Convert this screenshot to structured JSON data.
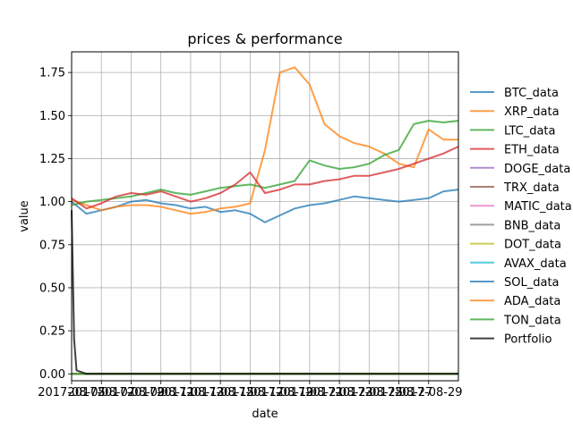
{
  "chart_data": {
    "type": "line",
    "title": "prices & performance",
    "xlabel": "date",
    "ylabel": "value",
    "x_ticks": [
      "2017-08-05",
      "2017-08-07",
      "2017-08-09",
      "2017-08-11",
      "2017-08-13",
      "2017-08-15",
      "2017-08-17",
      "2017-08-19",
      "2017-08-21",
      "2017-08-23",
      "2017-08-25",
      "2017-08-27",
      "2017-08-29"
    ],
    "x_tick_labels": [
      "2017-08-05",
      "2017-08-07",
      "2017-08-09",
      "2017-08-11",
      "2017-08-13",
      "2017-08-15",
      "2017-08-17",
      "2017-08-19",
      "2017-08-21",
      "2017-08-23",
      "2017-08-25",
      "2017-08-27",
      "2017-08-29"
    ],
    "x_range": [
      "2017-08-05",
      "2017-08-31"
    ],
    "y_ticks": [
      0.0,
      0.25,
      0.5,
      0.75,
      1.0,
      1.25,
      1.5,
      1.75
    ],
    "y_tick_labels": [
      "0.00",
      "0.25",
      "0.50",
      "0.75",
      "1.00",
      "1.25",
      "1.50",
      "1.75"
    ],
    "ylim": [
      -0.04,
      1.87
    ],
    "grid": true,
    "legend_position": "right",
    "series": [
      {
        "name": "BTC_data",
        "color": "#1f77b4",
        "alpha": 0.75,
        "x": [
          "2017-08-05",
          "2017-08-06",
          "2017-08-07",
          "2017-08-08",
          "2017-08-09",
          "2017-08-10",
          "2017-08-11",
          "2017-08-12",
          "2017-08-13",
          "2017-08-14",
          "2017-08-15",
          "2017-08-16",
          "2017-08-17",
          "2017-08-18",
          "2017-08-19",
          "2017-08-20",
          "2017-08-21",
          "2017-08-22",
          "2017-08-23",
          "2017-08-24",
          "2017-08-25",
          "2017-08-26",
          "2017-08-27",
          "2017-08-28",
          "2017-08-29",
          "2017-08-30",
          "2017-08-31"
        ],
        "y": [
          1.0,
          0.93,
          0.95,
          0.97,
          1.0,
          1.01,
          0.99,
          0.98,
          0.96,
          0.97,
          0.94,
          0.95,
          0.93,
          0.88,
          0.92,
          0.96,
          0.98,
          0.99,
          1.01,
          1.03,
          1.02,
          1.01,
          1.0,
          1.01,
          1.02,
          1.06,
          1.07
        ]
      },
      {
        "name": "XRP_data",
        "color": "#ff7f0e",
        "alpha": 0.75,
        "x": [
          "2017-08-05",
          "2017-08-06",
          "2017-08-07",
          "2017-08-08",
          "2017-08-09",
          "2017-08-10",
          "2017-08-11",
          "2017-08-12",
          "2017-08-13",
          "2017-08-14",
          "2017-08-15",
          "2017-08-16",
          "2017-08-17",
          "2017-08-18",
          "2017-08-19",
          "2017-08-20",
          "2017-08-21",
          "2017-08-22",
          "2017-08-23",
          "2017-08-24",
          "2017-08-25",
          "2017-08-26",
          "2017-08-27",
          "2017-08-28",
          "2017-08-29",
          "2017-08-30",
          "2017-08-31"
        ],
        "y": [
          1.01,
          0.98,
          0.95,
          0.97,
          0.98,
          0.98,
          0.97,
          0.95,
          0.93,
          0.94,
          0.96,
          0.97,
          0.99,
          1.3,
          1.75,
          1.78,
          1.68,
          1.45,
          1.38,
          1.34,
          1.32,
          1.28,
          1.22,
          1.2,
          1.42,
          1.36,
          1.36
        ]
      },
      {
        "name": "LTC_data",
        "color": "#2ca02c",
        "alpha": 0.75,
        "x": [
          "2017-08-05",
          "2017-08-06",
          "2017-08-07",
          "2017-08-08",
          "2017-08-09",
          "2017-08-10",
          "2017-08-11",
          "2017-08-12",
          "2017-08-13",
          "2017-08-14",
          "2017-08-15",
          "2017-08-16",
          "2017-08-17",
          "2017-08-18",
          "2017-08-19",
          "2017-08-20",
          "2017-08-21",
          "2017-08-22",
          "2017-08-23",
          "2017-08-24",
          "2017-08-25",
          "2017-08-26",
          "2017-08-27",
          "2017-08-28",
          "2017-08-29",
          "2017-08-30",
          "2017-08-31"
        ],
        "y": [
          0.98,
          1.0,
          1.01,
          1.02,
          1.03,
          1.05,
          1.07,
          1.05,
          1.04,
          1.06,
          1.08,
          1.09,
          1.1,
          1.08,
          1.1,
          1.12,
          1.24,
          1.21,
          1.19,
          1.2,
          1.22,
          1.27,
          1.3,
          1.45,
          1.47,
          1.46,
          1.47
        ]
      },
      {
        "name": "ETH_data",
        "color": "#d62728",
        "alpha": 0.75,
        "x": [
          "2017-08-05",
          "2017-08-06",
          "2017-08-07",
          "2017-08-08",
          "2017-08-09",
          "2017-08-10",
          "2017-08-11",
          "2017-08-12",
          "2017-08-13",
          "2017-08-14",
          "2017-08-15",
          "2017-08-16",
          "2017-08-17",
          "2017-08-18",
          "2017-08-19",
          "2017-08-20",
          "2017-08-21",
          "2017-08-22",
          "2017-08-23",
          "2017-08-24",
          "2017-08-25",
          "2017-08-26",
          "2017-08-27",
          "2017-08-28",
          "2017-08-29",
          "2017-08-30",
          "2017-08-31"
        ],
        "y": [
          1.02,
          0.96,
          0.99,
          1.03,
          1.05,
          1.04,
          1.06,
          1.03,
          1.0,
          1.02,
          1.05,
          1.1,
          1.17,
          1.05,
          1.07,
          1.1,
          1.1,
          1.12,
          1.13,
          1.15,
          1.15,
          1.17,
          1.19,
          1.22,
          1.25,
          1.28,
          1.32
        ]
      },
      {
        "name": "DOGE_data",
        "color": "#9467bd",
        "alpha": 0.75,
        "x": [
          "2017-08-05",
          "2017-08-31"
        ],
        "y": [
          0.0,
          0.0
        ]
      },
      {
        "name": "TRX_data",
        "color": "#8c564b",
        "alpha": 0.75,
        "x": [
          "2017-08-05",
          "2017-08-31"
        ],
        "y": [
          0.0,
          0.0
        ]
      },
      {
        "name": "MATIC_data",
        "color": "#e377c2",
        "alpha": 0.75,
        "x": [
          "2017-08-05",
          "2017-08-31"
        ],
        "y": [
          0.0,
          0.0
        ]
      },
      {
        "name": "BNB_data",
        "color": "#7f7f7f",
        "alpha": 0.75,
        "x": [
          "2017-08-05",
          "2017-08-31"
        ],
        "y": [
          0.0,
          0.0
        ]
      },
      {
        "name": "DOT_data",
        "color": "#bcbd22",
        "alpha": 0.75,
        "x": [
          "2017-08-05",
          "2017-08-31"
        ],
        "y": [
          0.0,
          0.0
        ]
      },
      {
        "name": "AVAX_data",
        "color": "#17becf",
        "alpha": 0.75,
        "x": [
          "2017-08-05",
          "2017-08-31"
        ],
        "y": [
          0.0,
          0.0
        ]
      },
      {
        "name": "SOL_data",
        "color": "#1f77b4",
        "alpha": 0.75,
        "x": [
          "2017-08-05",
          "2017-08-31"
        ],
        "y": [
          0.0,
          0.0
        ]
      },
      {
        "name": "ADA_data",
        "color": "#ff7f0e",
        "alpha": 0.75,
        "x": [
          "2017-08-05",
          "2017-08-31"
        ],
        "y": [
          0.0,
          0.0
        ]
      },
      {
        "name": "TON_data",
        "color": "#2ca02c",
        "alpha": 0.75,
        "x": [
          "2017-08-05",
          "2017-08-31"
        ],
        "y": [
          0.0,
          0.0
        ]
      },
      {
        "name": "Portfolio",
        "color": "#000000",
        "alpha": 0.75,
        "x": [
          "2017-08-05",
          "2017-08-05T04",
          "2017-08-05T08",
          "2017-08-06",
          "2017-08-31"
        ],
        "y": [
          0.95,
          0.2,
          0.02,
          0.0,
          0.0
        ]
      }
    ]
  }
}
